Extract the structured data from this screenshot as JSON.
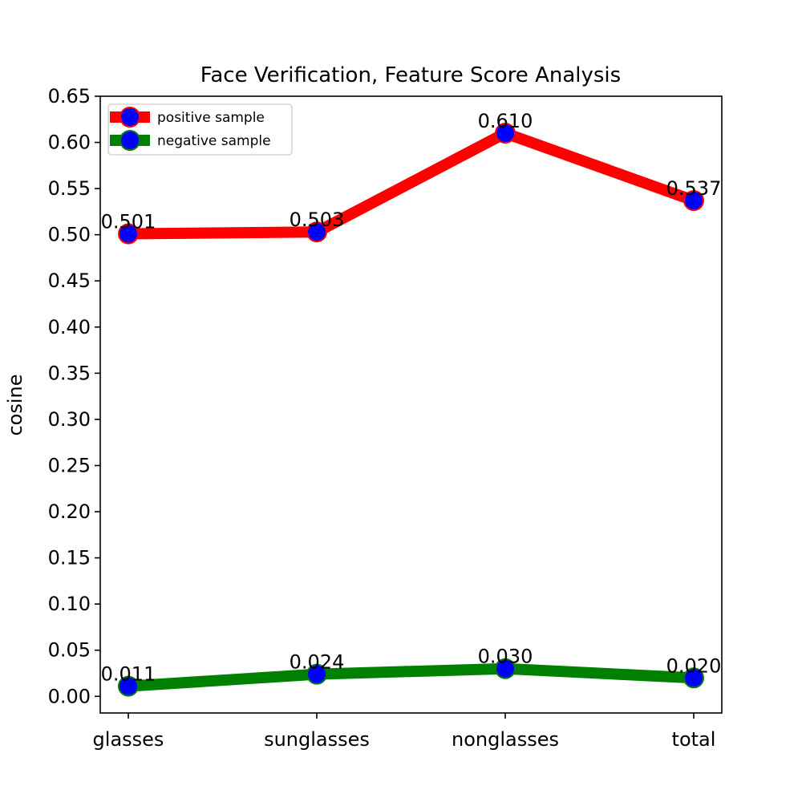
{
  "chart_data": {
    "type": "line",
    "title": "Face Verification, Feature Score Analysis",
    "xlabel": "",
    "ylabel": "cosine",
    "categories": [
      "glasses",
      "sunglasses",
      "nonglasses",
      "total"
    ],
    "ylim": [
      -0.018,
      0.65
    ],
    "yticks": [
      0.0,
      0.05,
      0.1,
      0.15,
      0.2,
      0.25,
      0.3,
      0.35,
      0.4,
      0.45,
      0.5,
      0.55,
      0.6,
      0.65
    ],
    "ytick_labels": [
      "0.00",
      "0.05",
      "0.10",
      "0.15",
      "0.20",
      "0.25",
      "0.30",
      "0.35",
      "0.40",
      "0.45",
      "0.50",
      "0.55",
      "0.60",
      "0.65"
    ],
    "grid": false,
    "legend_position": "top-left",
    "series": [
      {
        "name": "positive sample",
        "values": [
          0.501,
          0.503,
          0.61,
          0.537
        ],
        "labels": [
          "0.501",
          "0.503",
          "0.610",
          "0.537"
        ],
        "line_color": "#ff0000",
        "marker_face": "#0000ff",
        "marker_edge": "#ff0000"
      },
      {
        "name": "negative sample",
        "values": [
          0.011,
          0.024,
          0.03,
          0.02
        ],
        "labels": [
          "0.011",
          "0.024",
          "0.030",
          "0.020"
        ],
        "line_color": "#008000",
        "marker_face": "#0000ff",
        "marker_edge": "#008000"
      }
    ]
  }
}
